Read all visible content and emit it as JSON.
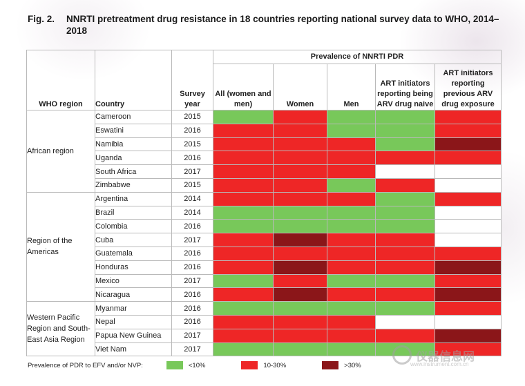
{
  "title": {
    "fig_number": "Fig. 2.",
    "text": "NNRTI pretreatment drug resistance in 18 countries reporting national survey data to WHO, 2014–2018"
  },
  "headers": {
    "region": "WHO region",
    "country": "Country",
    "year": "Survey year",
    "group": "Prevalence of NNRTI PDR",
    "columns": [
      "All (women and men)",
      "Women",
      "Men",
      "ART initiators reporting being ARV drug naive",
      "ART initiators reporting previous ARV drug exposure"
    ]
  },
  "regions": [
    {
      "name": "African region",
      "rows": 6
    },
    {
      "name": "Region of the Americas",
      "rows": 8
    },
    {
      "name": "Western Pacific Region and South-East Asia Region",
      "rows": 4
    }
  ],
  "rows": [
    {
      "country": "Cameroon",
      "year": "2015",
      "cells": [
        "g",
        "r",
        "g",
        "g",
        "r"
      ]
    },
    {
      "country": "Eswatini",
      "year": "2016",
      "cells": [
        "r",
        "r",
        "g",
        "g",
        "r"
      ]
    },
    {
      "country": "Namibia",
      "year": "2015",
      "cells": [
        "r",
        "r",
        "r",
        "g",
        "d"
      ]
    },
    {
      "country": "Uganda",
      "year": "2016",
      "cells": [
        "r",
        "r",
        "r",
        "r",
        "r"
      ]
    },
    {
      "country": "South Africa",
      "year": "2017",
      "cells": [
        "r",
        "r",
        "r",
        "w",
        "w"
      ]
    },
    {
      "country": "Zimbabwe",
      "year": "2015",
      "cells": [
        "r",
        "r",
        "g",
        "r",
        "w"
      ]
    },
    {
      "country": "Argentina",
      "year": "2014",
      "cells": [
        "r",
        "r",
        "r",
        "g",
        "r"
      ]
    },
    {
      "country": "Brazil",
      "year": "2014",
      "cells": [
        "g",
        "g",
        "g",
        "g",
        "w"
      ]
    },
    {
      "country": "Colombia",
      "year": "2016",
      "cells": [
        "g",
        "g",
        "g",
        "g",
        "w"
      ]
    },
    {
      "country": "Cuba",
      "year": "2017",
      "cells": [
        "r",
        "d",
        "r",
        "r",
        "w"
      ]
    },
    {
      "country": "Guatemala",
      "year": "2016",
      "cells": [
        "r",
        "r",
        "r",
        "r",
        "r"
      ]
    },
    {
      "country": "Honduras",
      "year": "2016",
      "cells": [
        "r",
        "d",
        "r",
        "r",
        "d"
      ]
    },
    {
      "country": "Mexico",
      "year": "2017",
      "cells": [
        "g",
        "r",
        "g",
        "g",
        "r"
      ]
    },
    {
      "country": "Nicaragua",
      "year": "2016",
      "cells": [
        "r",
        "d",
        "r",
        "r",
        "d"
      ]
    },
    {
      "country": "Myanmar",
      "year": "2016",
      "cells": [
        "g",
        "g",
        "g",
        "g",
        "r"
      ]
    },
    {
      "country": "Nepal",
      "year": "2016",
      "cells": [
        "r",
        "r",
        "r",
        "w",
        "w"
      ]
    },
    {
      "country": "Papua New Guinea",
      "year": "2017",
      "cells": [
        "r",
        "r",
        "r",
        "r",
        "d"
      ]
    },
    {
      "country": "Viet Nam",
      "year": "2017",
      "cells": [
        "g",
        "g",
        "g",
        "g",
        "r"
      ]
    }
  ],
  "legend": {
    "label": "Prevalence of PDR to EFV and/or NVP:",
    "items": [
      {
        "key": "g",
        "label": "<10%"
      },
      {
        "key": "r",
        "label": "10-30%"
      },
      {
        "key": "d",
        "label": ">30%"
      }
    ]
  },
  "colors": {
    "g": "#78c85a",
    "r": "#ee2626",
    "d": "#8b1619",
    "w": "#ffffff"
  },
  "watermark": {
    "text": "仪器信息网",
    "subtext": "www.instrument.com.cn"
  }
}
